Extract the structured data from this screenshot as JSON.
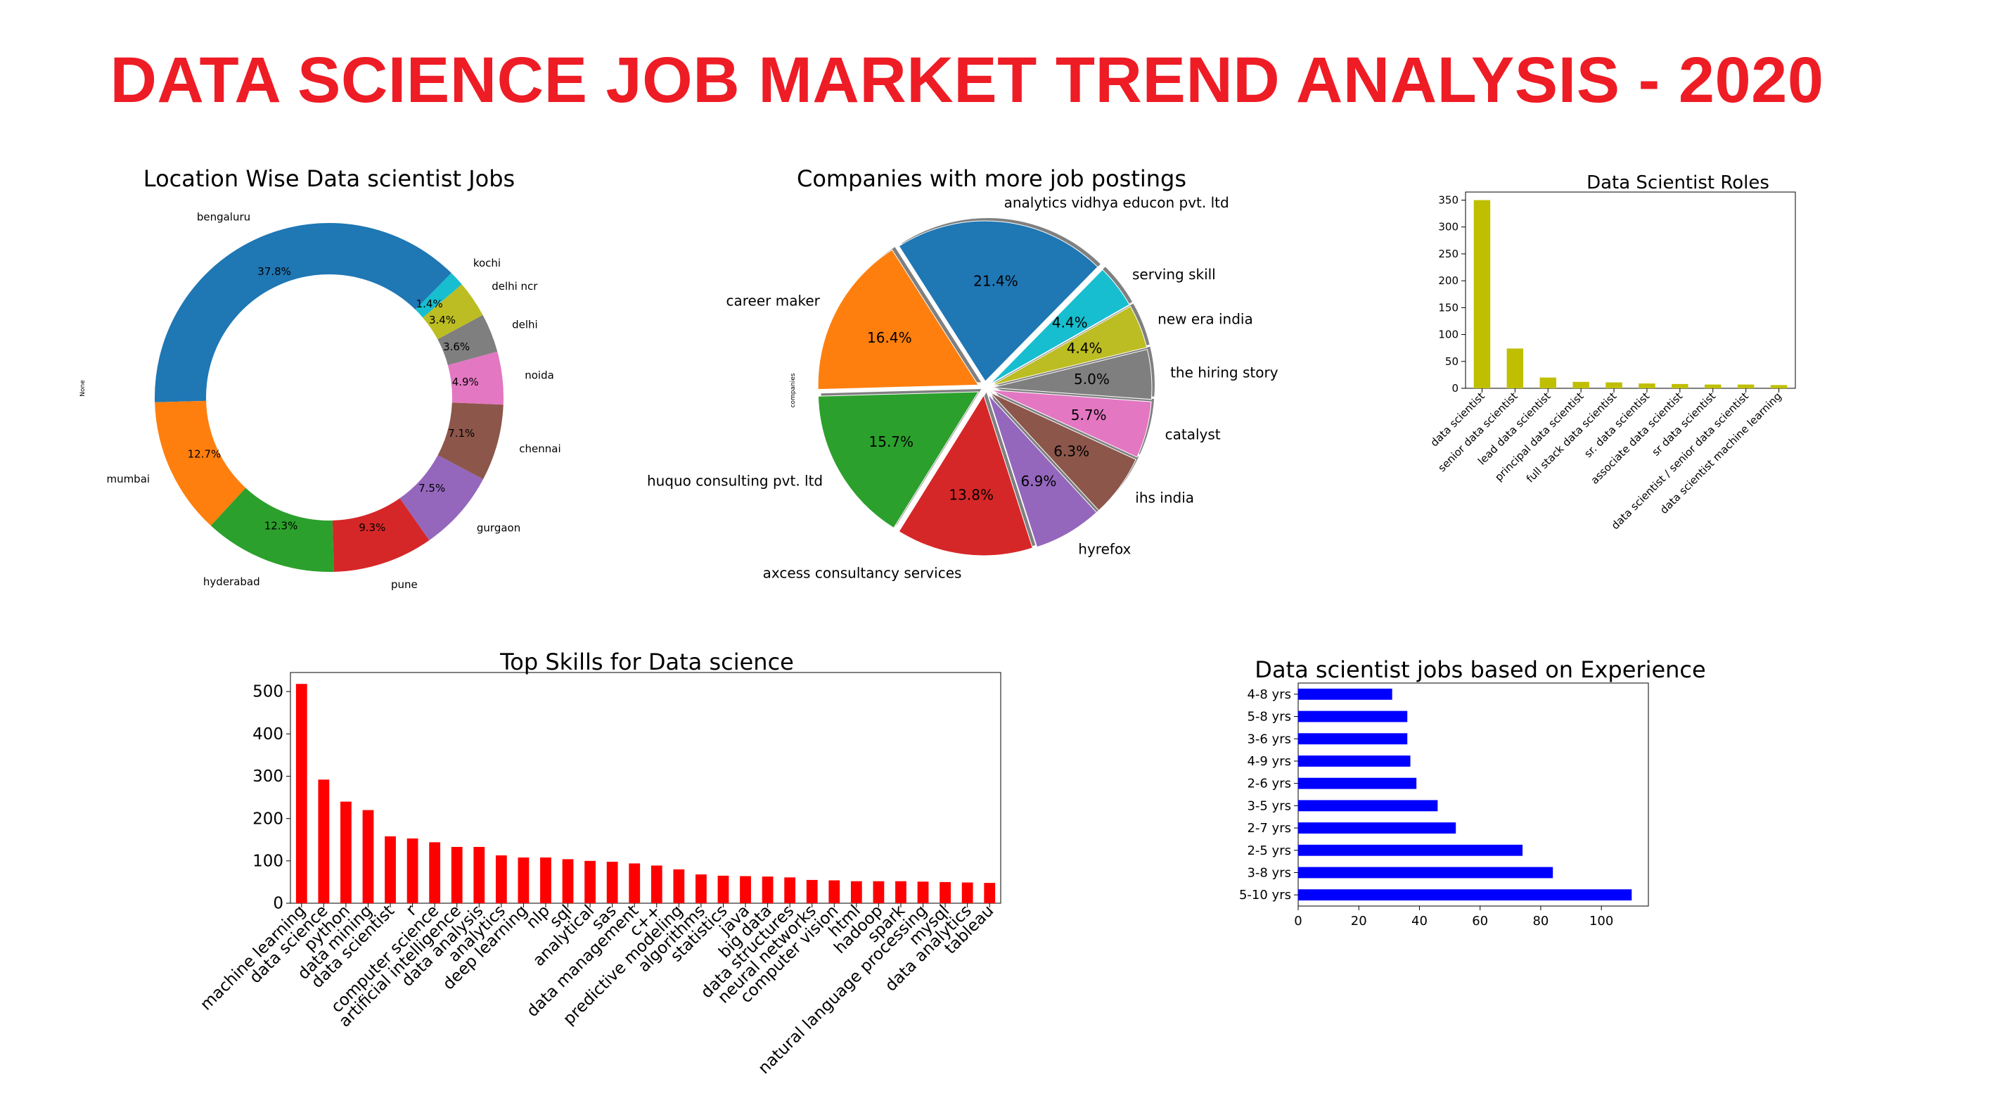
{
  "page": {
    "title": "DATA SCIENCE JOB MARKET TREND ANALYSIS - 2020"
  },
  "chart_data": [
    {
      "id": "locations",
      "type": "pie",
      "variant": "donut",
      "title": "Location Wise Data scientist Jobs",
      "ylabel": "None",
      "slices": [
        {
          "label": "bengaluru",
          "pct": "37.8%",
          "value": 37.8,
          "color": "#1f77b4"
        },
        {
          "label": "mumbai",
          "pct": "12.7%",
          "value": 12.7,
          "color": "#ff7f0e"
        },
        {
          "label": "hyderabad",
          "pct": "12.3%",
          "value": 12.3,
          "color": "#2ca02c"
        },
        {
          "label": "pune",
          "pct": "9.3%",
          "value": 9.3,
          "color": "#d62728"
        },
        {
          "label": "gurgaon",
          "pct": "7.5%",
          "value": 7.5,
          "color": "#9467bd"
        },
        {
          "label": "chennai",
          "pct": "7.1%",
          "value": 7.1,
          "color": "#8c564b"
        },
        {
          "label": "noida",
          "pct": "4.9%",
          "value": 4.9,
          "color": "#e377c2"
        },
        {
          "label": "delhi",
          "pct": "3.6%",
          "value": 3.6,
          "color": "#7f7f7f"
        },
        {
          "label": "delhi ncr",
          "pct": "3.4%",
          "value": 3.4,
          "color": "#bcbd22"
        },
        {
          "label": "kochi",
          "pct": "1.4%",
          "value": 1.4,
          "color": "#17becf"
        }
      ]
    },
    {
      "id": "companies",
      "type": "pie",
      "title": "Companies with more job postings",
      "ylabel": "companies",
      "slices": [
        {
          "label": "analytics vidhya educon pvt. ltd",
          "pct": "21.4%",
          "value": 21.4,
          "color": "#1f77b4"
        },
        {
          "label": "career maker",
          "pct": "16.4%",
          "value": 16.4,
          "color": "#ff7f0e"
        },
        {
          "label": "huquo consulting pvt. ltd",
          "pct": "15.7%",
          "value": 15.7,
          "color": "#2ca02c"
        },
        {
          "label": "axcess consultancy services",
          "pct": "13.8%",
          "value": 13.8,
          "color": "#d62728"
        },
        {
          "label": "hyrefox",
          "pct": "6.9%",
          "value": 6.9,
          "color": "#9467bd"
        },
        {
          "label": "ihs india",
          "pct": "6.3%",
          "value": 6.3,
          "color": "#8c564b"
        },
        {
          "label": "catalyst",
          "pct": "5.7%",
          "value": 5.7,
          "color": "#e377c2"
        },
        {
          "label": "the hiring story",
          "pct": "5.0%",
          "value": 5.0,
          "color": "#7f7f7f"
        },
        {
          "label": "new era india",
          "pct": "4.4%",
          "value": 4.4,
          "color": "#bcbd22"
        },
        {
          "label": "serving skill",
          "pct": "4.4%",
          "value": 4.4,
          "color": "#17becf"
        }
      ]
    },
    {
      "id": "roles",
      "type": "bar",
      "title": "Data Scientist Roles",
      "color": "#bfbf00",
      "categories": [
        "data scientist",
        "senior data scientist",
        "lead data scientist",
        "principal data scientist",
        "full stack data scientist",
        "sr. data scientist",
        "associate data scientist",
        "sr data scientist",
        "data scientist / senior data scientist",
        "data scientist machine learning"
      ],
      "values": [
        350,
        74,
        20,
        12,
        11,
        9,
        8,
        7,
        7,
        6
      ],
      "ylim": [
        0,
        365
      ],
      "yticks": [
        0,
        50,
        100,
        150,
        200,
        250,
        300,
        350
      ]
    },
    {
      "id": "skills",
      "type": "bar",
      "title": "Top Skills for Data science",
      "color": "#ff0000",
      "categories": [
        "machine learning",
        "data science",
        "python",
        "data mining",
        "data scientist",
        "r",
        "computer science",
        "artificial intelligence",
        "data analysis",
        "analytics",
        "deep learning",
        "nlp",
        "sql",
        "analytical",
        "sas",
        "data management",
        "c++",
        "predictive modeling",
        "algorithms",
        "statistics",
        "java",
        "big data",
        "data structures",
        "neural networks",
        "computer vision",
        "html",
        "hadoop",
        "spark",
        "natural language processing",
        "mysql",
        "data analytics",
        "tableau"
      ],
      "values": [
        518,
        292,
        240,
        220,
        158,
        153,
        144,
        133,
        133,
        113,
        108,
        108,
        104,
        100,
        98,
        94,
        89,
        80,
        68,
        65,
        64,
        63,
        61,
        55,
        54,
        52,
        52,
        52,
        51,
        50,
        49,
        48
      ],
      "ylim": [
        0,
        545
      ],
      "yticks": [
        0,
        100,
        200,
        300,
        400,
        500
      ]
    },
    {
      "id": "experience",
      "type": "bar",
      "orientation": "horizontal",
      "title": "Data scientist jobs based on Experience",
      "color": "#0000ff",
      "categories": [
        "5-10 yrs",
        "3-8 yrs",
        "2-5 yrs",
        "2-7 yrs",
        "3-5 yrs",
        "2-6 yrs",
        "4-9 yrs",
        "3-6 yrs",
        "5-8 yrs",
        "4-8 yrs"
      ],
      "values": [
        110,
        84,
        74,
        52,
        46,
        39,
        37,
        36,
        36,
        31
      ],
      "xlim": [
        0,
        115.5
      ],
      "xticks": [
        0,
        20,
        40,
        60,
        80,
        100
      ]
    }
  ]
}
